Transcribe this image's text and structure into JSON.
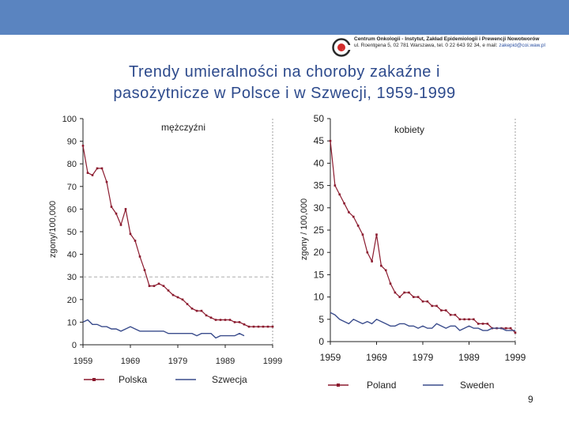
{
  "header": {
    "logo_line1": "Centrum Onkologii - Instytut, Zakład Epidemiologii i Prewencji Nowotworów",
    "logo_line2_prefix": "ul. Roentgena 5, 02 781 Warszawa, tel. 0 22 643 92 34, e mail:",
    "logo_email": "zakepid@coi.waw.pl",
    "logo_letters": "CO",
    "title_line1": "Trendy umieralności na choroby zakaźne i",
    "title_line2": "pasożytnicze w Polsce i w Szwecji, 1959-1999"
  },
  "page_number": "9",
  "colors": {
    "band": "#5a84c0",
    "poland": "#8b1a2e",
    "sweden": "#3a4c8c",
    "title": "#2d4a8c",
    "refline": "#a0a0a0"
  },
  "chart_data": [
    {
      "type": "line",
      "panel_label": "mężczyźni",
      "xlabel": "",
      "ylabel": "zgony/100,000",
      "xlim": [
        1959,
        1999
      ],
      "ylim": [
        0,
        100
      ],
      "x_ticks": [
        "1959",
        "1969",
        "1979",
        "1989",
        "1999"
      ],
      "y_ticks": [
        "0",
        "10",
        "20",
        "30",
        "40",
        "50",
        "60",
        "70",
        "80",
        "90",
        "100"
      ],
      "reference_line": 30,
      "legend_position": "bottom",
      "series": [
        {
          "name": "Polska",
          "marker": true,
          "x": [
            1959,
            1960,
            1961,
            1962,
            1963,
            1964,
            1965,
            1966,
            1967,
            1968,
            1969,
            1970,
            1971,
            1972,
            1973,
            1974,
            1975,
            1976,
            1977,
            1978,
            1979,
            1980,
            1981,
            1982,
            1983,
            1984,
            1985,
            1986,
            1987,
            1988,
            1989,
            1990,
            1991,
            1992,
            1993,
            1994,
            1995,
            1996,
            1997,
            1998,
            1999
          ],
          "values": [
            88,
            76,
            75,
            78,
            78,
            72,
            61,
            58,
            53,
            60,
            49,
            46,
            39,
            33,
            26,
            26,
            27,
            26,
            24,
            22,
            21,
            20,
            18,
            16,
            15,
            15,
            13,
            12,
            11,
            11,
            11,
            11,
            10,
            10,
            9,
            8,
            8,
            8,
            8,
            8,
            8
          ]
        },
        {
          "name": "Szwecja",
          "marker": false,
          "x": [
            1959,
            1960,
            1961,
            1962,
            1963,
            1964,
            1965,
            1966,
            1967,
            1968,
            1969,
            1970,
            1971,
            1972,
            1973,
            1974,
            1975,
            1976,
            1977,
            1978,
            1979,
            1980,
            1981,
            1982,
            1983,
            1984,
            1985,
            1986,
            1987,
            1988,
            1989,
            1990,
            1991,
            1992,
            1993
          ],
          "values": [
            10,
            11,
            9,
            9,
            8,
            8,
            7,
            7,
            6,
            7,
            8,
            7,
            6,
            6,
            6,
            6,
            6,
            6,
            5,
            5,
            5,
            5,
            5,
            5,
            4,
            5,
            5,
            5,
            3,
            4,
            4,
            4,
            4,
            5,
            4
          ]
        }
      ]
    },
    {
      "type": "line",
      "panel_label": "kobiety",
      "xlabel": "",
      "ylabel": "zgony / 100,000",
      "xlim": [
        1959,
        1999
      ],
      "ylim": [
        0,
        50
      ],
      "x_ticks": [
        "1959",
        "1969",
        "1979",
        "1989",
        "1999"
      ],
      "y_ticks": [
        "0",
        "5",
        "10",
        "15",
        "20",
        "25",
        "30",
        "35",
        "40",
        "45",
        "50"
      ],
      "legend_position": "bottom",
      "series": [
        {
          "name": "Poland",
          "marker": true,
          "x": [
            1959,
            1960,
            1961,
            1962,
            1963,
            1964,
            1965,
            1966,
            1967,
            1968,
            1969,
            1970,
            1971,
            1972,
            1973,
            1974,
            1975,
            1976,
            1977,
            1978,
            1979,
            1980,
            1981,
            1982,
            1983,
            1984,
            1985,
            1986,
            1987,
            1988,
            1989,
            1990,
            1991,
            1992,
            1993,
            1994,
            1995,
            1996,
            1997,
            1998,
            1999
          ],
          "values": [
            45,
            35,
            33,
            31,
            29,
            28,
            26,
            24,
            20,
            18,
            24,
            17,
            16,
            13,
            11,
            10,
            11,
            11,
            10,
            10,
            9,
            9,
            8,
            8,
            7,
            7,
            6,
            6,
            5,
            5,
            5,
            5,
            4,
            4,
            4,
            3,
            3,
            3,
            3,
            3,
            2
          ]
        },
        {
          "name": "Sweden",
          "marker": false,
          "x": [
            1959,
            1960,
            1961,
            1962,
            1963,
            1964,
            1965,
            1966,
            1967,
            1968,
            1969,
            1970,
            1971,
            1972,
            1973,
            1974,
            1975,
            1976,
            1977,
            1978,
            1979,
            1980,
            1981,
            1982,
            1983,
            1984,
            1985,
            1986,
            1987,
            1988,
            1989,
            1990,
            1991,
            1992,
            1993,
            1994,
            1995,
            1996,
            1997,
            1998,
            1999
          ],
          "values": [
            6.5,
            6,
            5,
            4.5,
            4,
            5,
            4.5,
            4,
            4.5,
            4,
            5,
            4.5,
            4,
            3.5,
            3.5,
            4,
            4,
            3.5,
            3.5,
            3,
            3.5,
            3,
            3,
            4,
            3.5,
            3,
            3.5,
            3.5,
            2.5,
            3,
            3.5,
            3,
            3,
            2.5,
            2.5,
            3,
            3,
            3,
            2.5,
            2.5,
            2.5
          ]
        }
      ]
    }
  ]
}
